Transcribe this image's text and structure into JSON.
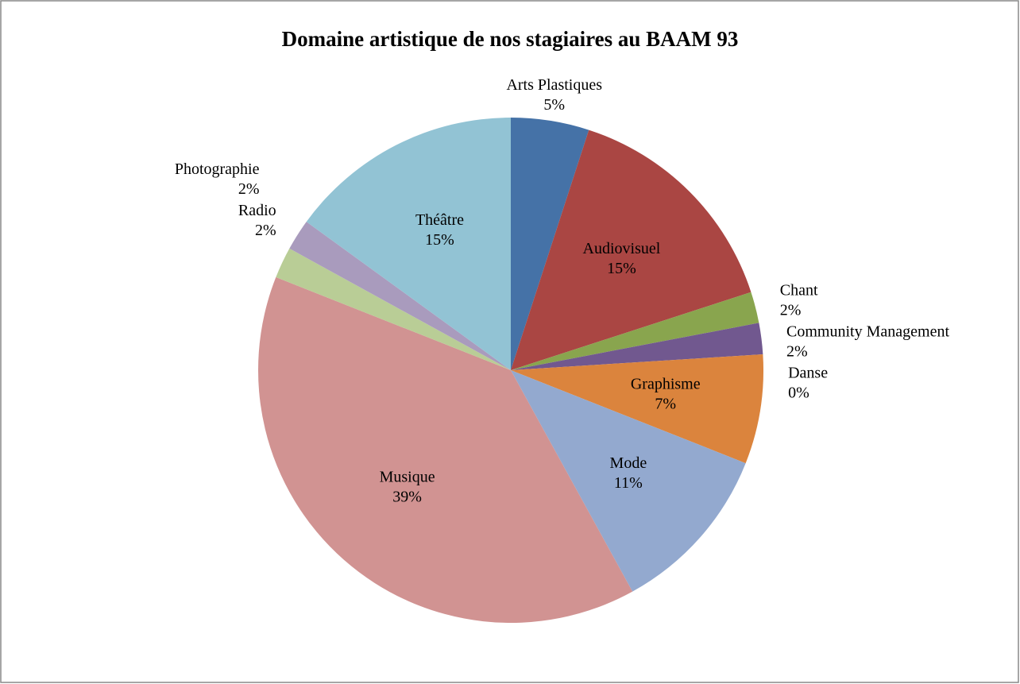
{
  "chart_data": {
    "type": "pie",
    "title": "Domaine artistique de nos stagiaires au BAAM 93",
    "categories": [
      "Arts Plastiques",
      "Audiovisuel",
      "Chant",
      "Community Management",
      "Danse",
      "Graphisme",
      "Mode",
      "Musique",
      "Photographie",
      "Radio",
      "Théâtre"
    ],
    "values": [
      5,
      15,
      2,
      2,
      0,
      7,
      11,
      39,
      2,
      2,
      15
    ],
    "value_labels": [
      "5%",
      "15%",
      "2%",
      "2%",
      "0%",
      "7%",
      "11%",
      "39%",
      "2%",
      "2%",
      "15%"
    ],
    "colors": [
      "#4572a7",
      "#aa4643",
      "#89a54e",
      "#71588f",
      "#4198af",
      "#db843d",
      "#93a9cf",
      "#d19392",
      "#b9cd96",
      "#a99bbd",
      "#92c3d4"
    ]
  }
}
